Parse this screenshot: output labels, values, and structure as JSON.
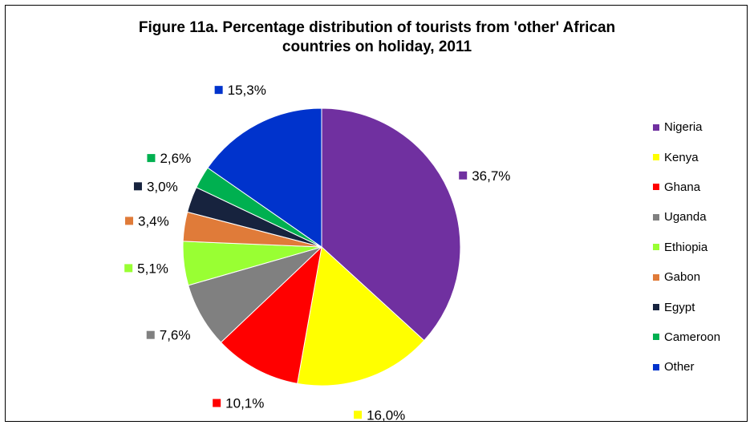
{
  "chart_data": {
    "type": "pie",
    "title_lines": [
      "Figure 11a. Percentage distribution of tourists from 'other' African",
      "countries on holiday, 2011"
    ],
    "categories": [
      "Nigeria",
      "Kenya",
      "Ghana",
      "Uganda",
      "Ethiopia",
      "Gabon",
      "Egypt",
      "Cameroon",
      "Other"
    ],
    "values": [
      36.7,
      16.0,
      10.1,
      7.6,
      5.1,
      3.4,
      3.0,
      2.6,
      15.3
    ],
    "labels": [
      "36,7%",
      "16,0%",
      "10,1%",
      "7,6%",
      "5,1%",
      "3,4%",
      "3,0%",
      "2,6%",
      "15,3%"
    ],
    "colors": [
      "#7030A0",
      "#FFFF00",
      "#FF0000",
      "#808080",
      "#99FF33",
      "#E07B39",
      "#17233E",
      "#00B050",
      "#0033CC"
    ],
    "legend_position": "right",
    "start_angle": "12 o'clock",
    "direction": "clockwise"
  }
}
